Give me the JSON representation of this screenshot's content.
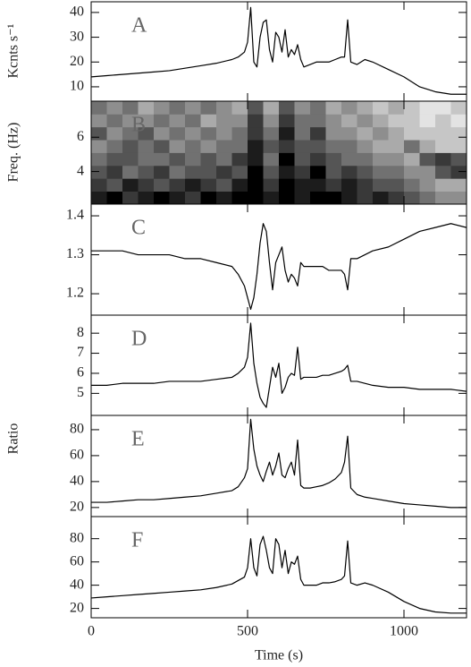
{
  "chart_data": [
    {
      "type": "line",
      "annotation": "A",
      "ylabel": "Kcnts s⁻¹",
      "x": [
        0,
        50,
        100,
        150,
        200,
        250,
        300,
        350,
        400,
        450,
        470,
        490,
        500,
        510,
        520,
        530,
        540,
        550,
        560,
        570,
        580,
        590,
        600,
        610,
        620,
        630,
        640,
        650,
        660,
        670,
        680,
        700,
        720,
        740,
        760,
        780,
        800,
        810,
        820,
        830,
        850,
        875,
        900,
        950,
        1000,
        1050,
        1100,
        1150,
        1200
      ],
      "series": [
        {
          "color": "#000000",
          "values": [
            14,
            14.5,
            15,
            15.5,
            16,
            16.5,
            17.5,
            18.5,
            19.5,
            21,
            22,
            24,
            28,
            42,
            20,
            18,
            30,
            36,
            37,
            25,
            20,
            32,
            30,
            24,
            33,
            22,
            25,
            23,
            27,
            21,
            18,
            19,
            20,
            20,
            20,
            21,
            22,
            22,
            37,
            20,
            19,
            21,
            20,
            17,
            14,
            10,
            8,
            7,
            7
          ]
        }
      ],
      "xlim": [
        0,
        1200
      ],
      "xticks": [
        0,
        500,
        1000
      ],
      "ylim": [
        4.2,
        44.3
      ],
      "yticks": [
        10,
        20,
        30,
        40
      ]
    },
    {
      "type": "heatmap",
      "annotation": "B",
      "ylabel": "Freq. (Hz)",
      "xbins": [
        0,
        50,
        100,
        150,
        200,
        250,
        300,
        350,
        400,
        450,
        500,
        550,
        600,
        650,
        700,
        750,
        800,
        850,
        900,
        950,
        1000,
        1050,
        1100,
        1150,
        1200
      ],
      "ybins": [
        2.1,
        2.85,
        3.6,
        4.35,
        5.1,
        5.85,
        6.6,
        7.35,
        8.1
      ],
      "zlim": [
        0,
        9
      ],
      "colormap": "gray_r",
      "values": [
        [
          8,
          9,
          7,
          8,
          9,
          8,
          7,
          9,
          8,
          9,
          9,
          8,
          9,
          8,
          9,
          9,
          8,
          7,
          8,
          7,
          6,
          5,
          4,
          4
        ],
        [
          7,
          6,
          8,
          7,
          6,
          7,
          8,
          7,
          6,
          8,
          9,
          7,
          9,
          8,
          8,
          7,
          8,
          7,
          6,
          6,
          5,
          4,
          3,
          3
        ],
        [
          6,
          7,
          5,
          6,
          7,
          5,
          6,
          6,
          7,
          6,
          9,
          6,
          8,
          7,
          9,
          6,
          7,
          6,
          5,
          5,
          4,
          4,
          6,
          7
        ],
        [
          5,
          6,
          6,
          5,
          5,
          6,
          5,
          6,
          5,
          7,
          8,
          5,
          9,
          6,
          7,
          6,
          5,
          5,
          4,
          4,
          3,
          6,
          7,
          6
        ],
        [
          4,
          5,
          6,
          5,
          6,
          4,
          5,
          4,
          5,
          5,
          8,
          6,
          7,
          6,
          6,
          5,
          5,
          4,
          3,
          3,
          5,
          3,
          2,
          2
        ],
        [
          6,
          4,
          5,
          6,
          4,
          5,
          4,
          5,
          4,
          5,
          7,
          5,
          8,
          5,
          7,
          4,
          4,
          3,
          4,
          3,
          2,
          2,
          2,
          2
        ],
        [
          4,
          5,
          4,
          4,
          5,
          4,
          5,
          3,
          4,
          4,
          7,
          4,
          7,
          5,
          5,
          4,
          3,
          4,
          3,
          2,
          2,
          1,
          2,
          1
        ],
        [
          5,
          4,
          5,
          3,
          4,
          5,
          4,
          5,
          4,
          3,
          6,
          3,
          6,
          4,
          5,
          3,
          4,
          3,
          2,
          3,
          2,
          1,
          1,
          2
        ]
      ],
      "xlim": [
        0,
        1200
      ],
      "xticks": [
        0,
        500,
        1000
      ],
      "ylim": [
        2.1,
        8.1
      ],
      "yticks": [
        4,
        6
      ]
    },
    {
      "type": "line",
      "annotation": "C",
      "x": [
        0,
        50,
        100,
        150,
        200,
        250,
        300,
        350,
        400,
        450,
        470,
        490,
        500,
        510,
        520,
        530,
        540,
        550,
        560,
        570,
        580,
        590,
        600,
        610,
        620,
        630,
        640,
        650,
        660,
        670,
        680,
        700,
        720,
        740,
        760,
        780,
        800,
        810,
        820,
        830,
        850,
        875,
        900,
        950,
        1000,
        1050,
        1100,
        1150,
        1200
      ],
      "series": [
        {
          "color": "#000000",
          "values": [
            1.31,
            1.31,
            1.31,
            1.3,
            1.3,
            1.3,
            1.29,
            1.29,
            1.28,
            1.27,
            1.25,
            1.22,
            1.19,
            1.16,
            1.19,
            1.25,
            1.33,
            1.38,
            1.36,
            1.28,
            1.21,
            1.28,
            1.3,
            1.32,
            1.26,
            1.23,
            1.25,
            1.24,
            1.22,
            1.28,
            1.27,
            1.27,
            1.27,
            1.27,
            1.26,
            1.26,
            1.26,
            1.25,
            1.21,
            1.29,
            1.29,
            1.3,
            1.31,
            1.32,
            1.34,
            1.36,
            1.37,
            1.38,
            1.37
          ]
        }
      ],
      "xlim": [
        0,
        1200
      ],
      "xticks": [
        0,
        500,
        1000
      ],
      "ylim": [
        1.145,
        1.43
      ],
      "yticks": [
        1.2,
        1.3,
        1.4
      ]
    },
    {
      "type": "line",
      "annotation": "D",
      "x": [
        0,
        50,
        100,
        150,
        200,
        250,
        300,
        350,
        400,
        450,
        470,
        490,
        500,
        510,
        520,
        530,
        540,
        550,
        560,
        570,
        580,
        590,
        600,
        610,
        620,
        630,
        640,
        650,
        660,
        670,
        680,
        700,
        720,
        740,
        760,
        780,
        800,
        810,
        820,
        830,
        850,
        875,
        900,
        950,
        1000,
        1050,
        1100,
        1150,
        1200
      ],
      "series": [
        {
          "color": "#000000",
          "values": [
            5.4,
            5.4,
            5.5,
            5.5,
            5.5,
            5.6,
            5.6,
            5.6,
            5.7,
            5.8,
            6.0,
            6.3,
            6.8,
            8.5,
            6.5,
            5.5,
            4.8,
            4.5,
            4.3,
            5.3,
            6.3,
            5.8,
            6.5,
            5.0,
            5.3,
            5.8,
            6.0,
            5.9,
            7.3,
            5.7,
            5.8,
            5.8,
            5.8,
            5.9,
            5.9,
            6.0,
            6.1,
            6.2,
            6.4,
            5.6,
            5.6,
            5.5,
            5.4,
            5.3,
            5.3,
            5.2,
            5.2,
            5.2,
            5.1
          ]
        }
      ],
      "xlim": [
        0,
        1200
      ],
      "xticks": [
        0,
        500,
        1000
      ],
      "ylim": [
        3.9,
        8.9
      ],
      "yticks": [
        5,
        6,
        7,
        8
      ]
    },
    {
      "type": "line",
      "annotation": "E",
      "ylabel": "Ratio",
      "x": [
        0,
        50,
        100,
        150,
        200,
        250,
        300,
        350,
        400,
        450,
        470,
        490,
        500,
        510,
        520,
        530,
        540,
        550,
        560,
        570,
        580,
        590,
        600,
        610,
        620,
        630,
        640,
        650,
        660,
        670,
        680,
        700,
        720,
        740,
        760,
        780,
        800,
        810,
        820,
        830,
        850,
        875,
        900,
        950,
        1000,
        1050,
        1100,
        1150,
        1200
      ],
      "series": [
        {
          "color": "#000000",
          "values": [
            24,
            24,
            25,
            26,
            26,
            27,
            28,
            29,
            31,
            33,
            36,
            43,
            50,
            88,
            65,
            52,
            45,
            40,
            48,
            55,
            45,
            52,
            62,
            45,
            43,
            50,
            55,
            45,
            72,
            37,
            35,
            35,
            36,
            37,
            39,
            42,
            47,
            55,
            75,
            35,
            30,
            28,
            27,
            25,
            23,
            22,
            21,
            20,
            20
          ]
        }
      ],
      "xlim": [
        0,
        1200
      ],
      "xticks": [
        0,
        500,
        1000
      ],
      "ylim": [
        13,
        91
      ],
      "yticks": [
        20,
        40,
        60,
        80
      ]
    },
    {
      "type": "line",
      "annotation": "F",
      "xlabel": "Time (s)",
      "x": [
        0,
        50,
        100,
        150,
        200,
        250,
        300,
        350,
        400,
        450,
        470,
        490,
        500,
        510,
        520,
        530,
        540,
        550,
        560,
        570,
        580,
        590,
        600,
        610,
        620,
        630,
        640,
        650,
        660,
        670,
        680,
        700,
        720,
        740,
        760,
        780,
        800,
        810,
        820,
        830,
        850,
        875,
        900,
        950,
        1000,
        1050,
        1100,
        1150,
        1200
      ],
      "series": [
        {
          "color": "#000000",
          "values": [
            29,
            30,
            31,
            32,
            33,
            34,
            35,
            36,
            38,
            41,
            44,
            47,
            55,
            80,
            55,
            48,
            75,
            82,
            70,
            55,
            50,
            80,
            75,
            55,
            70,
            50,
            60,
            58,
            65,
            45,
            40,
            40,
            40,
            42,
            42,
            43,
            45,
            48,
            78,
            42,
            40,
            42,
            40,
            34,
            26,
            20,
            17,
            16,
            16
          ]
        }
      ],
      "xlim": [
        0,
        1200
      ],
      "xticks": [
        0,
        500,
        1000
      ],
      "ylim": [
        12,
        99
      ],
      "yticks": [
        20,
        40,
        60,
        80
      ]
    }
  ]
}
